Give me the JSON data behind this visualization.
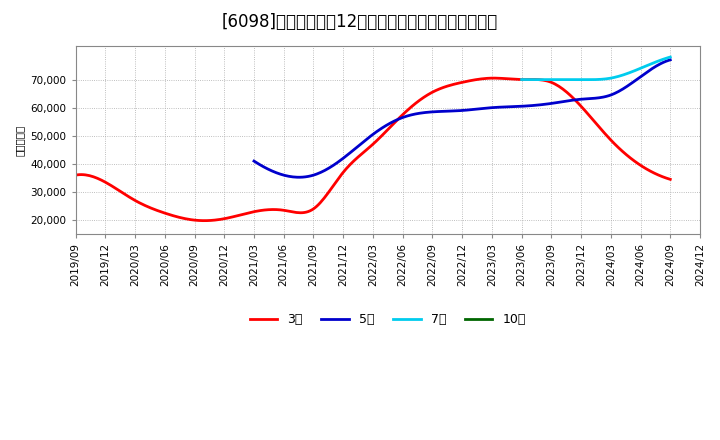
{
  "title": "[6098]　当期純利益12か月移動合計の標準偏差の推移",
  "ylabel": "（百万円）",
  "ylim": [
    15000,
    82000
  ],
  "yticks": [
    20000,
    30000,
    40000,
    50000,
    60000,
    70000
  ],
  "ytick_labels": [
    "20,000",
    "30,000",
    "40,000",
    "50,000",
    "60,000",
    "70,000"
  ],
  "background_color": "#ffffff",
  "plot_background": "#ffffff",
  "grid_color": "#aaaaaa",
  "series": {
    "3year": {
      "color": "#ff0000",
      "label": "3年",
      "dates_num": [
        0,
        3,
        6,
        9,
        12,
        15,
        18,
        21,
        24,
        27,
        30,
        33,
        36,
        39,
        42,
        45,
        48,
        51,
        54,
        57,
        60
      ],
      "values": [
        36000,
        33500,
        27000,
        22500,
        20000,
        20500,
        23000,
        23500,
        24000,
        37000,
        47000,
        57500,
        65500,
        69000,
        70500,
        70000,
        69000,
        60500,
        48500,
        39500,
        34500
      ]
    },
    "5year": {
      "color": "#0000cc",
      "label": "5年",
      "dates_num": [
        18,
        21,
        24,
        27,
        30,
        33,
        36,
        39,
        42,
        45,
        48,
        51,
        54,
        57,
        60
      ],
      "values": [
        41000,
        36000,
        36000,
        42000,
        50500,
        56500,
        58500,
        59000,
        60000,
        60500,
        61500,
        63000,
        64500,
        71000,
        77000
      ]
    },
    "7year": {
      "color": "#00ccee",
      "label": "7年",
      "dates_num": [
        45,
        48,
        51,
        54,
        57,
        60
      ],
      "values": [
        70000,
        70000,
        70000,
        70500,
        74000,
        78000
      ]
    },
    "10year": {
      "color": "#006600",
      "label": "10年",
      "dates_num": [],
      "values": []
    }
  },
  "xtick_labels": [
    "2019/09",
    "2019/12",
    "2020/03",
    "2020/06",
    "2020/09",
    "2020/12",
    "2021/03",
    "2021/06",
    "2021/09",
    "2021/12",
    "2022/03",
    "2022/06",
    "2022/09",
    "2022/12",
    "2023/03",
    "2023/06",
    "2023/09",
    "2023/12",
    "2024/03",
    "2024/06",
    "2024/09",
    "2024/12"
  ],
  "xtick_num": [
    0,
    3,
    6,
    9,
    12,
    15,
    18,
    21,
    24,
    27,
    30,
    33,
    36,
    39,
    42,
    45,
    48,
    51,
    54,
    57,
    60,
    63
  ],
  "xlim": [
    0,
    63
  ],
  "title_fontsize": 12,
  "tick_fontsize": 7.5,
  "legend_fontsize": 9,
  "linewidth": 2.0,
  "spline_points": 300
}
